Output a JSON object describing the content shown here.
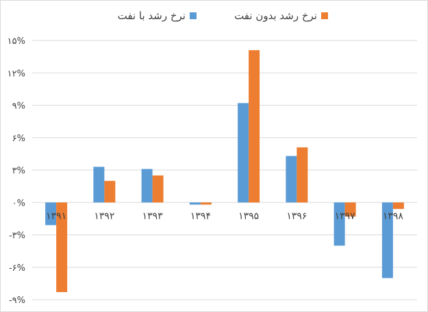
{
  "chart_data": {
    "type": "bar",
    "categories": [
      "۱۳۹۱",
      "۱۳۹۲",
      "۱۳۹۳",
      "۱۳۹۴",
      "۱۳۹۵",
      "۱۳۹۶",
      "۱۳۹۷",
      "۱۳۹۸"
    ],
    "series": [
      {
        "name": "نرخ رشد با نفت",
        "color": "#5b9bd5",
        "values": [
          -2.1,
          3.3,
          3.1,
          -0.2,
          9.2,
          4.3,
          -4.0,
          -7.0
        ]
      },
      {
        "name": "نرخ رشد بدون نفت",
        "color": "#ed7d31",
        "values": [
          -8.3,
          2.0,
          2.5,
          -0.2,
          14.1,
          5.1,
          -1.3,
          -0.6
        ]
      }
    ],
    "ylim": [
      -9,
      15
    ],
    "yticks": [
      {
        "value": 15,
        "label": "۱۵%"
      },
      {
        "value": 12,
        "label": "۱۲%"
      },
      {
        "value": 9,
        "label": "۹%"
      },
      {
        "value": 6,
        "label": "۶%"
      },
      {
        "value": 3,
        "label": "۳%"
      },
      {
        "value": 0,
        "label": "۰%"
      },
      {
        "value": -3,
        "label": "-۳%"
      },
      {
        "value": -6,
        "label": "-۶%"
      },
      {
        "value": -9,
        "label": "-۹%"
      }
    ],
    "grid": true,
    "legend_position": "top"
  }
}
